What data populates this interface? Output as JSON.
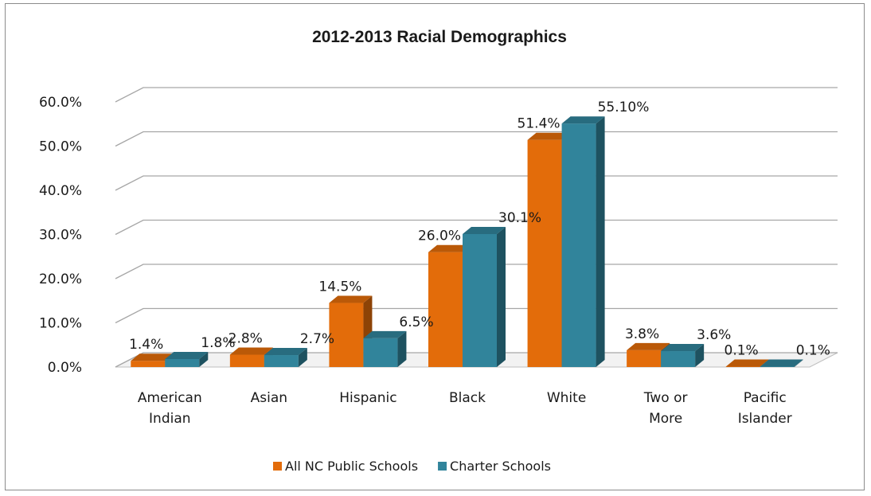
{
  "chart_data": {
    "type": "bar",
    "title": "2012-2013  Racial Demographics",
    "categories": [
      "American Indian",
      "Asian",
      "Hispanic",
      "Black",
      "White",
      "Two or More",
      "Pacific Islander"
    ],
    "category_lines": [
      [
        "American",
        "Indian"
      ],
      [
        "Asian"
      ],
      [
        "Hispanic"
      ],
      [
        "Black"
      ],
      [
        "White"
      ],
      [
        "Two or",
        "More"
      ],
      [
        "Pacific",
        "Islander"
      ]
    ],
    "series": [
      {
        "name": "All NC Public Schools",
        "color": "#E36C0A",
        "values": [
          1.4,
          2.8,
          14.5,
          26.0,
          51.4,
          3.8,
          0.1
        ],
        "labels": [
          "1.4%",
          "2.8%",
          "14.5%",
          "26.0%",
          "51.4%",
          "3.8%",
          "0.1%"
        ]
      },
      {
        "name": "Charter Schools",
        "color": "#31849B",
        "values": [
          1.8,
          2.7,
          6.5,
          30.1,
          55.1,
          3.6,
          0.1
        ],
        "labels": [
          "1.8%",
          "2.7%",
          "6.5%",
          "30.1%",
          "55.10%",
          "3.6%",
          "0.1%"
        ]
      }
    ],
    "ylim": [
      0,
      60
    ],
    "y_ticks": [
      0,
      10,
      20,
      30,
      40,
      50,
      60
    ],
    "y_tick_labels": [
      "0.0%",
      "10.0%",
      "20.0%",
      "30.0%",
      "40.0%",
      "50.0%",
      "60.0%"
    ],
    "xlabel": "",
    "ylabel": "",
    "grid": true,
    "legend_position": "bottom",
    "style": "3d-clustered-column"
  }
}
